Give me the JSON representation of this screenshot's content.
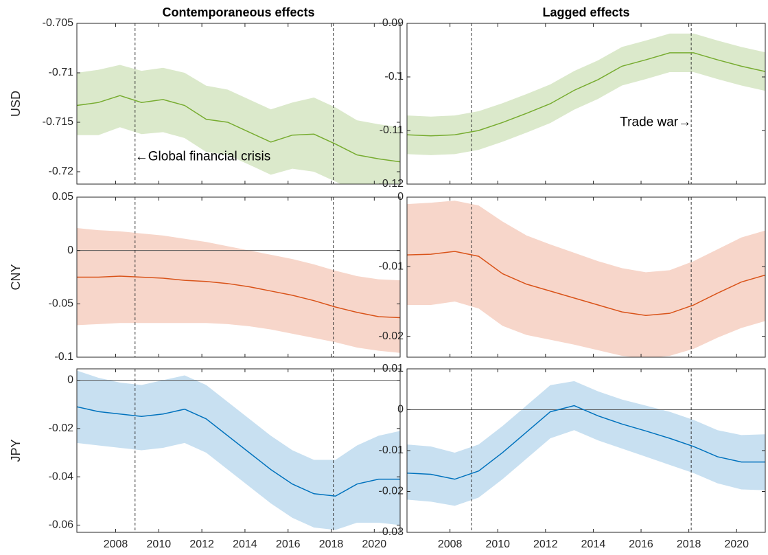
{
  "chart_data": [
    {
      "type": "line",
      "title": "Contemporaneous effects",
      "ylabel": "USD",
      "color": "#77ac30",
      "band_color": "#dbe9cb",
      "x": [
        2006.2,
        2007.2,
        2008.2,
        2009.2,
        2010.2,
        2011.2,
        2012.2,
        2013.2,
        2014.2,
        2015.2,
        2016.2,
        2017.2,
        2018.2,
        2019.2,
        2020.2,
        2021.2
      ],
      "values": [
        -0.7133,
        -0.713,
        -0.7123,
        -0.713,
        -0.7127,
        -0.7133,
        -0.7147,
        -0.715,
        -0.716,
        -0.717,
        -0.7163,
        -0.7162,
        -0.7172,
        -0.7183,
        -0.7187,
        -0.719
      ],
      "lower": [
        -0.7163,
        -0.7163,
        -0.7155,
        -0.7162,
        -0.716,
        -0.7166,
        -0.718,
        -0.7183,
        -0.7193,
        -0.7203,
        -0.7197,
        -0.72,
        -0.721,
        -0.722,
        -0.7224,
        -0.7228
      ],
      "upper": [
        -0.71,
        -0.7097,
        -0.7092,
        -0.7098,
        -0.7095,
        -0.71,
        -0.7113,
        -0.7117,
        -0.7127,
        -0.7137,
        -0.713,
        -0.7125,
        -0.7135,
        -0.7148,
        -0.7152,
        -0.7155
      ],
      "xlim": [
        2006.2,
        2021.2
      ],
      "ylim": [
        -0.72125,
        -0.705
      ],
      "yticks": [
        -0.72,
        -0.715,
        -0.71,
        -0.705
      ],
      "xticks": [
        2008,
        2010,
        2012,
        2014,
        2016,
        2018,
        2020
      ],
      "xticklabels": false,
      "vlines": [
        2008.9,
        2018.1
      ],
      "annotations": [
        {
          "text": "←Global financial crisis",
          "x": 2008.9,
          "y": -0.7185
        }
      ]
    },
    {
      "type": "line",
      "title": "Lagged effects",
      "color": "#77ac30",
      "band_color": "#dbe9cb",
      "x": [
        2006.2,
        2007.2,
        2008.2,
        2009.2,
        2010.2,
        2011.2,
        2012.2,
        2013.2,
        2014.2,
        2015.2,
        2016.2,
        2017.2,
        2018.2,
        2019.2,
        2020.2,
        2021.2
      ],
      "values": [
        -0.1108,
        -0.111,
        -0.1108,
        -0.11,
        -0.1085,
        -0.1068,
        -0.105,
        -0.1025,
        -0.1005,
        -0.098,
        -0.0968,
        -0.0955,
        -0.0955,
        -0.0968,
        -0.098,
        -0.099
      ],
      "lower": [
        -0.1144,
        -0.1146,
        -0.1144,
        -0.1136,
        -0.1121,
        -0.1104,
        -0.1086,
        -0.1061,
        -0.1041,
        -0.1016,
        -0.1004,
        -0.0991,
        -0.0991,
        -0.1004,
        -0.1016,
        -0.1026
      ],
      "upper": [
        -0.1072,
        -0.1074,
        -0.1072,
        -0.1064,
        -0.1049,
        -0.1032,
        -0.1014,
        -0.0989,
        -0.0969,
        -0.0944,
        -0.0932,
        -0.0919,
        -0.0919,
        -0.0932,
        -0.0944,
        -0.0954
      ],
      "xlim": [
        2006.2,
        2021.2
      ],
      "ylim": [
        -0.12,
        -0.09
      ],
      "yticks": [
        -0.12,
        -0.11,
        -0.1,
        -0.09
      ],
      "xticks": [
        2008,
        2010,
        2012,
        2014,
        2016,
        2018,
        2020
      ],
      "xticklabels": false,
      "vlines": [
        2008.9,
        2018.1
      ],
      "annotations": [
        {
          "text": "Trade war→",
          "x": 2018.1,
          "y": -0.1085
        }
      ]
    },
    {
      "type": "line",
      "ylabel": "CNY",
      "color": "#d95319",
      "band_color": "#f7d6ca",
      "x": [
        2006.2,
        2007.2,
        2008.2,
        2009.2,
        2010.2,
        2011.2,
        2012.2,
        2013.2,
        2014.2,
        2015.2,
        2016.2,
        2017.2,
        2018.2,
        2019.2,
        2020.2,
        2021.2
      ],
      "values": [
        -0.025,
        -0.025,
        -0.024,
        -0.025,
        -0.026,
        -0.028,
        -0.029,
        -0.031,
        -0.034,
        -0.038,
        -0.042,
        -0.047,
        -0.053,
        -0.058,
        -0.062,
        -0.063
      ],
      "lower": [
        -0.07,
        -0.069,
        -0.068,
        -0.068,
        -0.068,
        -0.068,
        -0.068,
        -0.069,
        -0.071,
        -0.074,
        -0.078,
        -0.082,
        -0.086,
        -0.091,
        -0.094,
        -0.096
      ],
      "upper": [
        0.021,
        0.019,
        0.018,
        0.016,
        0.014,
        0.011,
        0.008,
        0.004,
        0.0,
        -0.004,
        -0.008,
        -0.013,
        -0.019,
        -0.024,
        -0.027,
        -0.028
      ],
      "xlim": [
        2006.2,
        2021.2
      ],
      "ylim": [
        -0.1,
        0.05
      ],
      "yticks": [
        -0.1,
        -0.05,
        0,
        0.05
      ],
      "xticks": [
        2008,
        2010,
        2012,
        2014,
        2016,
        2018,
        2020
      ],
      "xticklabels": false,
      "vlines": [
        2008.9,
        2018.1
      ],
      "hline": 0
    },
    {
      "type": "line",
      "color": "#d95319",
      "band_color": "#f7d6ca",
      "x": [
        2006.2,
        2007.2,
        2008.2,
        2009.2,
        2010.2,
        2011.2,
        2012.2,
        2013.2,
        2014.2,
        2015.2,
        2016.2,
        2017.2,
        2018.2,
        2019.2,
        2020.2,
        2021.2
      ],
      "values": [
        -0.0083,
        -0.0082,
        -0.0078,
        -0.0085,
        -0.011,
        -0.0125,
        -0.0135,
        -0.0145,
        -0.0155,
        -0.0165,
        -0.017,
        -0.0167,
        -0.0155,
        -0.0138,
        -0.0122,
        -0.0112
      ],
      "lower": [
        -0.0155,
        -0.0155,
        -0.015,
        -0.016,
        -0.0185,
        -0.0198,
        -0.0205,
        -0.0212,
        -0.022,
        -0.0228,
        -0.0232,
        -0.0228,
        -0.0218,
        -0.0202,
        -0.0188,
        -0.0178
      ],
      "upper": [
        -0.001,
        -0.0008,
        -0.0005,
        -0.0012,
        -0.0035,
        -0.0055,
        -0.0068,
        -0.008,
        -0.0092,
        -0.0102,
        -0.0108,
        -0.0105,
        -0.0092,
        -0.0075,
        -0.0058,
        -0.0048
      ],
      "xlim": [
        2006.2,
        2021.2
      ],
      "ylim": [
        -0.023,
        0
      ],
      "yticks": [
        -0.02,
        -0.01,
        0
      ],
      "xticks": [
        2008,
        2010,
        2012,
        2014,
        2016,
        2018,
        2020
      ],
      "xticklabels": false,
      "vlines": [
        2008.9,
        2018.1
      ]
    },
    {
      "type": "line",
      "ylabel": "JPY",
      "color": "#0072bd",
      "band_color": "#c8e0f1",
      "x": [
        2006.2,
        2007.2,
        2008.2,
        2009.2,
        2010.2,
        2011.2,
        2012.2,
        2013.2,
        2014.2,
        2015.2,
        2016.2,
        2017.2,
        2018.2,
        2019.2,
        2020.2,
        2021.2
      ],
      "values": [
        -0.011,
        -0.013,
        -0.014,
        -0.015,
        -0.014,
        -0.012,
        -0.016,
        -0.023,
        -0.03,
        -0.037,
        -0.043,
        -0.047,
        -0.048,
        -0.043,
        -0.041,
        -0.041
      ],
      "lower": [
        -0.026,
        -0.027,
        -0.028,
        -0.029,
        -0.028,
        -0.026,
        -0.03,
        -0.037,
        -0.044,
        -0.051,
        -0.057,
        -0.061,
        -0.062,
        -0.059,
        -0.059,
        -0.06
      ],
      "upper": [
        0.004,
        0.001,
        -0.001,
        -0.002,
        0.0,
        0.002,
        -0.002,
        -0.009,
        -0.016,
        -0.023,
        -0.029,
        -0.033,
        -0.033,
        -0.027,
        -0.023,
        -0.021
      ],
      "xlim": [
        2006.2,
        2021.2
      ],
      "ylim": [
        -0.063,
        0.0047
      ],
      "yticks": [
        -0.06,
        -0.04,
        -0.02,
        0
      ],
      "xticks": [
        2008,
        2010,
        2012,
        2014,
        2016,
        2018,
        2020
      ],
      "xticklabels": true,
      "vlines": [
        2008.9,
        2018.1
      ],
      "hline": 0
    },
    {
      "type": "line",
      "color": "#0072bd",
      "band_color": "#c8e0f1",
      "x": [
        2006.2,
        2007.2,
        2008.2,
        2009.2,
        2010.2,
        2011.2,
        2012.2,
        2013.2,
        2014.2,
        2015.2,
        2016.2,
        2017.2,
        2018.2,
        2019.2,
        2020.2,
        2021.2
      ],
      "values": [
        -0.0155,
        -0.0158,
        -0.017,
        -0.015,
        -0.0105,
        -0.0055,
        -0.0005,
        0.001,
        -0.0015,
        -0.0035,
        -0.0052,
        -0.007,
        -0.009,
        -0.0115,
        -0.0128,
        -0.0128
      ],
      "lower": [
        -0.022,
        -0.0225,
        -0.0235,
        -0.0215,
        -0.017,
        -0.012,
        -0.007,
        -0.005,
        -0.0075,
        -0.0095,
        -0.0115,
        -0.0135,
        -0.0155,
        -0.018,
        -0.0195,
        -0.0197
      ],
      "upper": [
        -0.0085,
        -0.009,
        -0.0105,
        -0.0085,
        -0.004,
        0.001,
        0.006,
        0.007,
        0.0045,
        0.0025,
        0.001,
        -0.0005,
        -0.0025,
        -0.005,
        -0.0062,
        -0.006
      ],
      "xlim": [
        2006.2,
        2021.2
      ],
      "ylim": [
        -0.03,
        0.01
      ],
      "yticks": [
        -0.03,
        -0.02,
        -0.01,
        0,
        0.01
      ],
      "xticks": [
        2008,
        2010,
        2012,
        2014,
        2016,
        2018,
        2020
      ],
      "xticklabels": true,
      "vlines": [
        2008.9,
        2018.1
      ],
      "hline": 0
    }
  ]
}
